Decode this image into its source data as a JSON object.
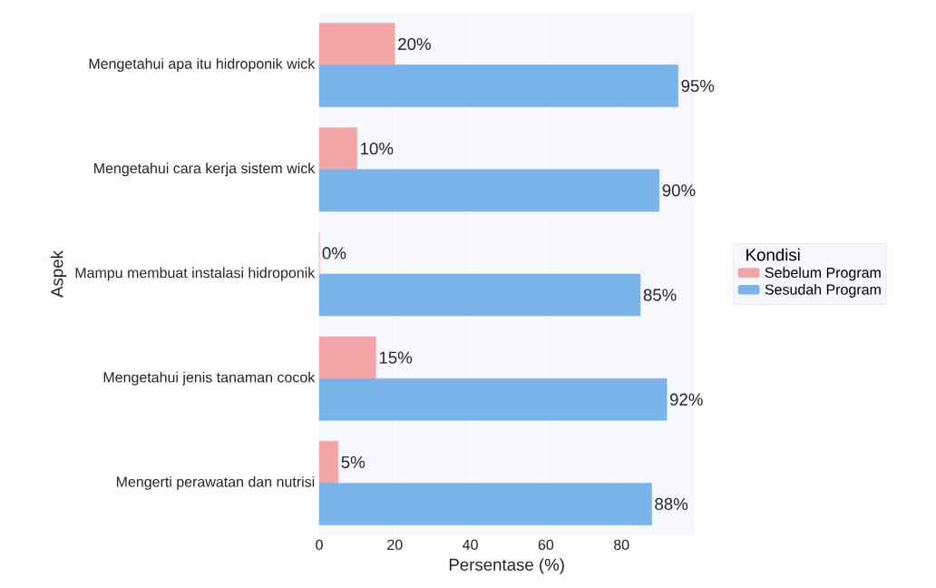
{
  "chart_data": {
    "type": "bar",
    "orientation": "horizontal",
    "xlabel": "Persentase (%)",
    "ylabel": "Aspek",
    "legend_title": "Kondisi",
    "categories": [
      "Mengetahui apa itu hidroponik wick",
      "Mengetahui cara kerja sistem wick",
      "Mampu membuat instalasi hidroponik",
      "Mengetahui jenis tanaman cocok",
      "Mengerti perawatan dan nutrisi"
    ],
    "series": [
      {
        "name": "Sebelum Program",
        "color": "#f4a6a6",
        "values": [
          20,
          10,
          0,
          15,
          5
        ],
        "value_labels": [
          "20%",
          "10%",
          "0%",
          "15%",
          "5%"
        ]
      },
      {
        "name": "Sesudah Program",
        "color": "#78b3ea",
        "values": [
          95,
          90,
          85,
          92,
          88
        ],
        "value_labels": [
          "95%",
          "90%",
          "85%",
          "92%",
          "88%"
        ]
      }
    ],
    "xlim": [
      0,
      99.25
    ],
    "xticks": [
      0,
      20,
      40,
      60,
      80
    ],
    "grid": "x",
    "legend": "right"
  }
}
